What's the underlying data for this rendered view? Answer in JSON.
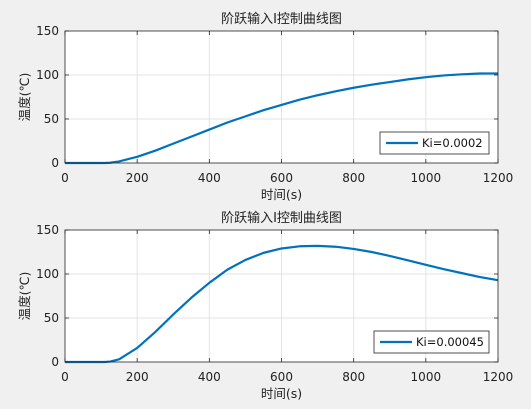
{
  "chart_data": [
    {
      "type": "line",
      "title": "阶跃输入I控制曲线图",
      "xlabel": "时间(s)",
      "ylabel": "温度(℃)",
      "xlim": [
        0,
        1200
      ],
      "ylim": [
        0,
        150
      ],
      "xticks": [
        0,
        200,
        400,
        600,
        800,
        1000,
        1200
      ],
      "yticks": [
        0,
        50,
        100,
        150
      ],
      "grid": true,
      "legend_position": "lower-right",
      "series": [
        {
          "name": "Ki=0.0002",
          "color": "#0072bd",
          "x": [
            0,
            60,
            110,
            125,
            150,
            200,
            250,
            300,
            350,
            400,
            450,
            500,
            550,
            600,
            650,
            700,
            750,
            800,
            850,
            900,
            950,
            1000,
            1050,
            1100,
            1150,
            1200
          ],
          "y": [
            0,
            0,
            0,
            0.3,
            1.8,
            7,
            14,
            22,
            30,
            38,
            46,
            53,
            60,
            66,
            72,
            77,
            81.5,
            85.5,
            89,
            92,
            95,
            97.5,
            99.5,
            100.8,
            101.7,
            101.8
          ]
        }
      ]
    },
    {
      "type": "line",
      "title": "阶跃输入I控制曲线图",
      "xlabel": "时间(s)",
      "ylabel": "温度(℃)",
      "xlim": [
        0,
        1200
      ],
      "ylim": [
        0,
        150
      ],
      "xticks": [
        0,
        200,
        400,
        600,
        800,
        1000,
        1200
      ],
      "yticks": [
        0,
        50,
        100,
        150
      ],
      "grid": true,
      "legend_position": "lower-right",
      "series": [
        {
          "name": "Ki=0.00045",
          "color": "#0072bd",
          "x": [
            0,
            60,
            110,
            125,
            150,
            200,
            250,
            300,
            350,
            400,
            450,
            500,
            550,
            600,
            650,
            700,
            750,
            800,
            850,
            900,
            950,
            1000,
            1050,
            1100,
            1150,
            1200
          ],
          "y": [
            0,
            0,
            0,
            0.5,
            3,
            16,
            34,
            54,
            73,
            90,
            105,
            116,
            124,
            129,
            131.5,
            132,
            131,
            128.5,
            125,
            120.5,
            115.5,
            110.5,
            105.5,
            101,
            96.5,
            93
          ]
        }
      ]
    }
  ]
}
